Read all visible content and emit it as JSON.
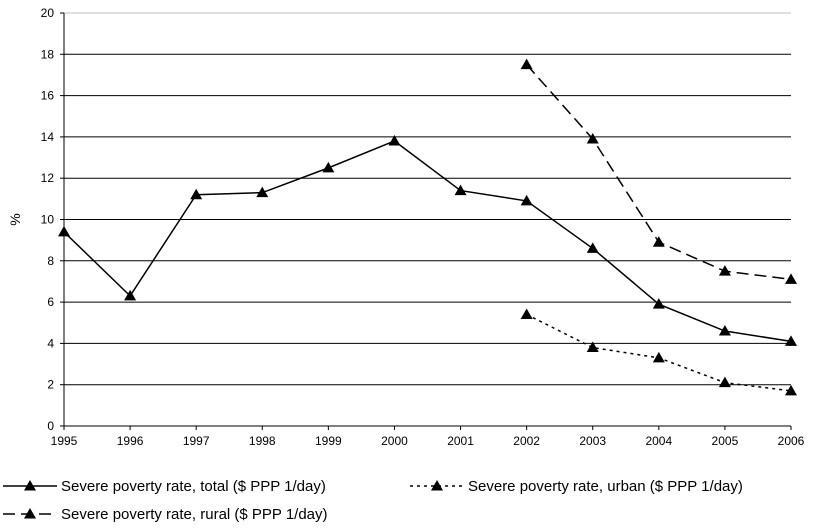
{
  "chart_data": {
    "type": "line",
    "title": "",
    "xlabel": "",
    "ylabel": "%",
    "categories": [
      "1995",
      "1996",
      "1997",
      "1998",
      "1999",
      "2000",
      "2001",
      "2002",
      "2003",
      "2004",
      "2005",
      "2006"
    ],
    "ylim": [
      0,
      20
    ],
    "yticks": [
      "0",
      "2",
      "4",
      "6",
      "8",
      "10",
      "12",
      "14",
      "16",
      "18",
      "20"
    ],
    "grid": "horizontal",
    "legend_position": "bottom",
    "series": [
      {
        "name": "Severe poverty rate, total ($ PPP 1/day)",
        "style": "solid",
        "values": [
          9.4,
          6.3,
          11.2,
          11.3,
          12.5,
          13.8,
          11.4,
          10.9,
          8.6,
          5.9,
          4.6,
          4.1
        ]
      },
      {
        "name": "Severe poverty rate, urban ($ PPP 1/day)",
        "style": "dotted",
        "values": [
          null,
          null,
          null,
          null,
          null,
          null,
          null,
          5.4,
          3.8,
          3.3,
          2.1,
          1.7
        ]
      },
      {
        "name": "Severe poverty rate, rural ($ PPP 1/day)",
        "style": "dashed",
        "values": [
          null,
          null,
          null,
          null,
          null,
          null,
          null,
          17.5,
          13.9,
          8.9,
          7.5,
          7.1
        ]
      }
    ]
  }
}
